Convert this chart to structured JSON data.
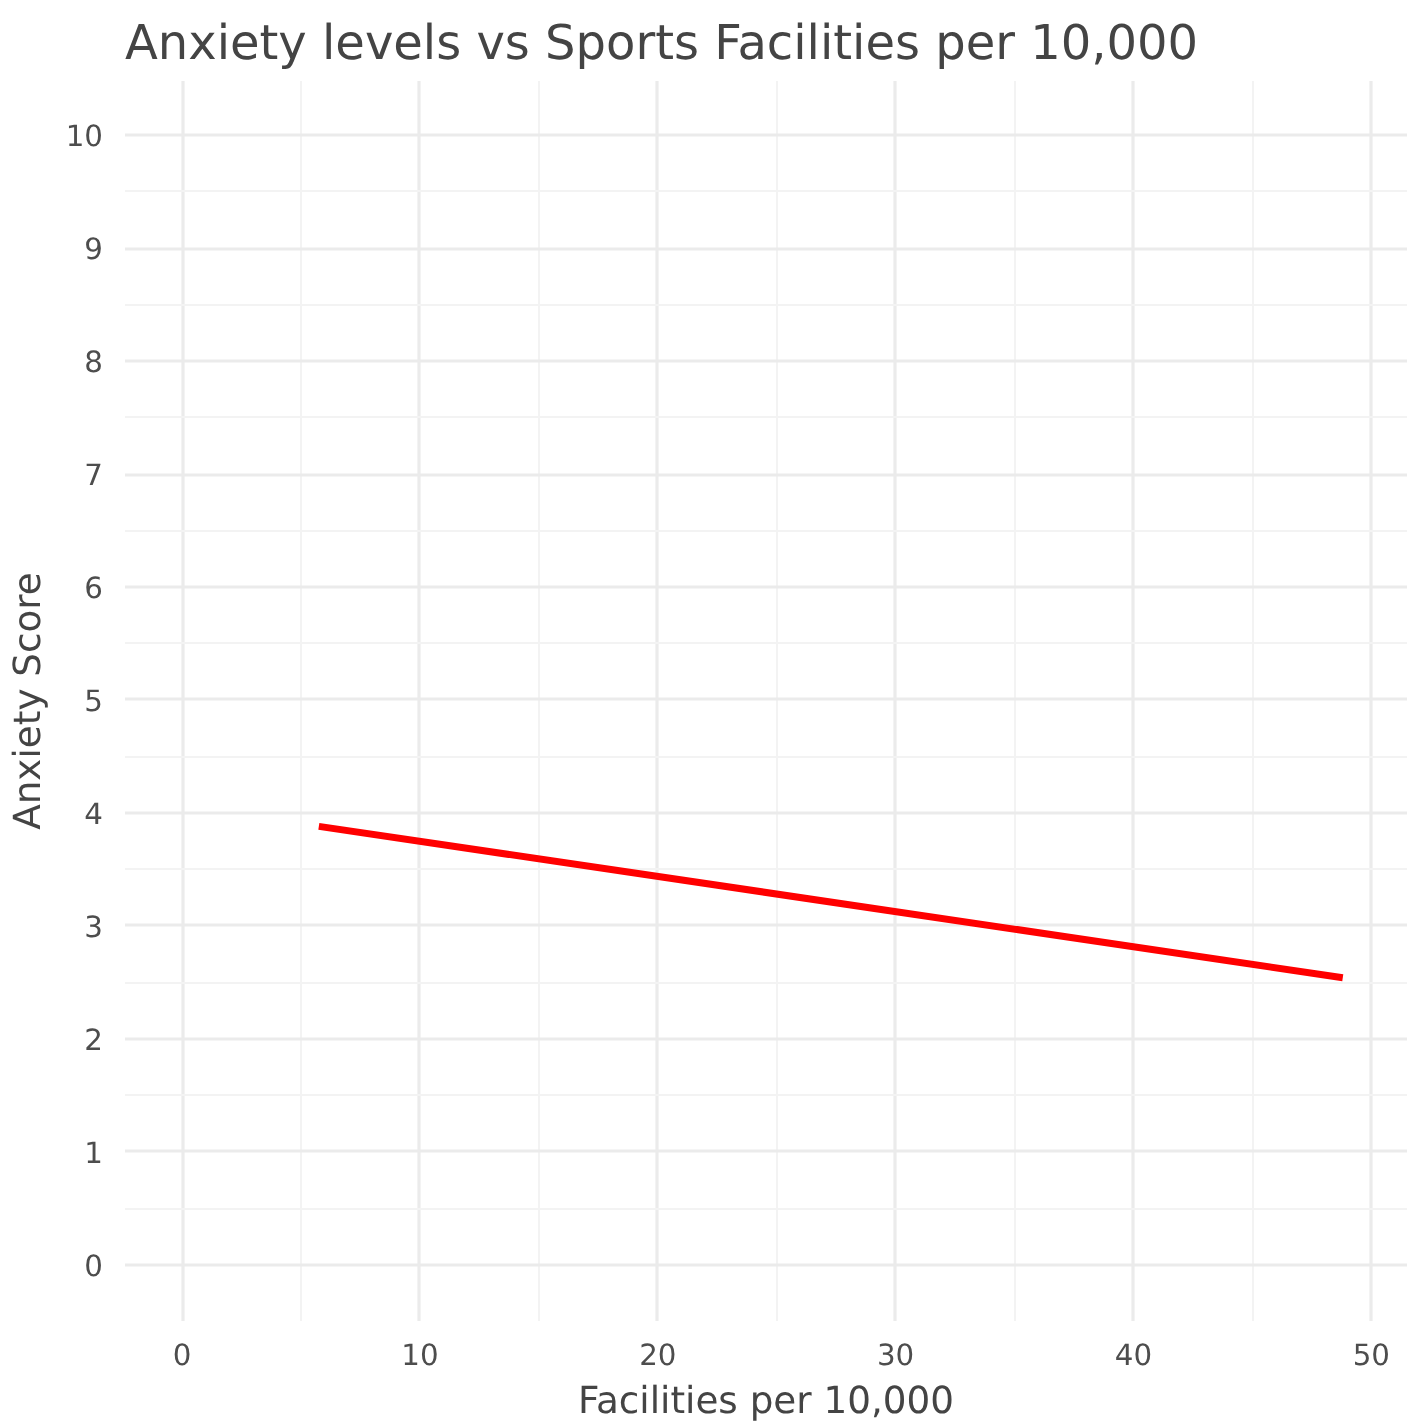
{
  "chart_data": {
    "type": "line",
    "title": "Anxiety levels vs Sports Facilities per 10,000",
    "xlabel": "Facilities per 10,000",
    "ylabel": "Anxiety Score",
    "x": [
      5.75,
      48.8
    ],
    "series": [
      {
        "color": "#ff0000",
        "values": [
          3.88,
          2.54
        ]
      }
    ],
    "xlim": [
      -2.4,
      51.5
    ],
    "ylim": [
      -0.5,
      10.48
    ],
    "xticks": [
      0,
      10,
      20,
      30,
      40,
      50
    ],
    "yticks": [
      0,
      1,
      2,
      3,
      4,
      5,
      6,
      7,
      8,
      9,
      10
    ],
    "grid": true,
    "line_style": "solid",
    "marker": "none"
  }
}
